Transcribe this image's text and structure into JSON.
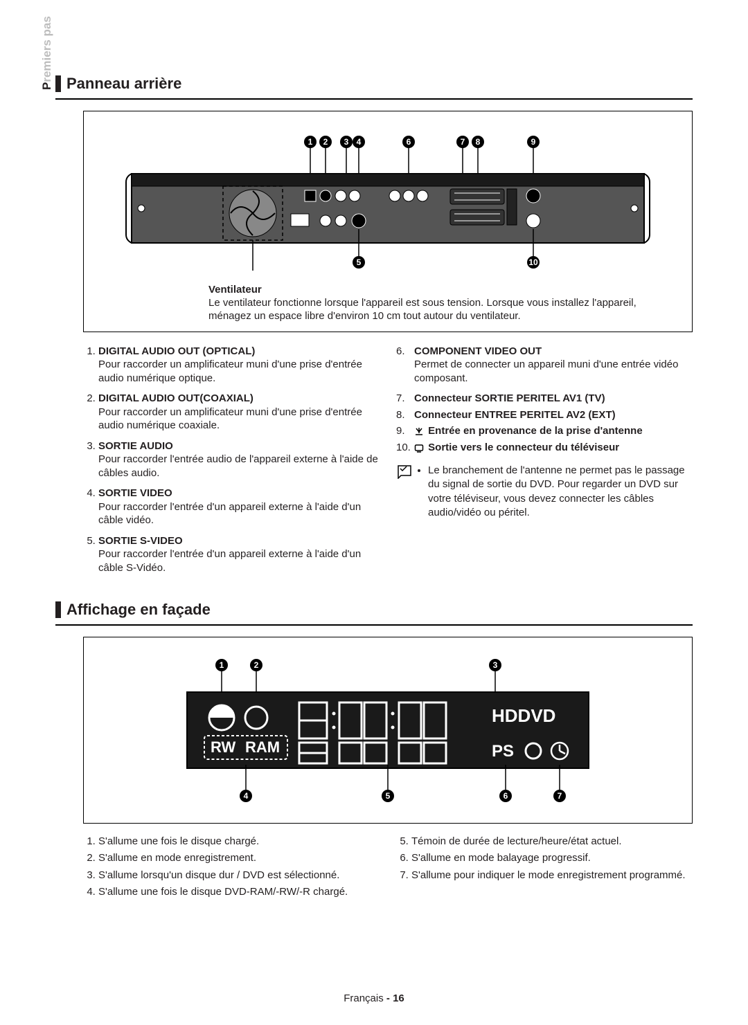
{
  "side_tab_highlight": "P",
  "side_tab_rest": "remiers pas",
  "section1_title": "Panneau arrière",
  "ventilator": {
    "label": "Ventilateur",
    "text": "Le ventilateur fonctionne lorsque l'appareil est sous tension. Lorsque vous installez l'appareil, ménagez un espace libre d'environ 10 cm tout autour du ventilateur."
  },
  "rear_left": [
    {
      "t": "DIGITAL AUDIO OUT (OPTICAL)",
      "d": "Pour raccorder un amplificateur muni d'une prise d'entrée audio numérique optique."
    },
    {
      "t": "DIGITAL AUDIO OUT(COAXIAL)",
      "d": "Pour raccorder un amplificateur muni d'une prise d'entrée audio numérique coaxiale."
    },
    {
      "t": "SORTIE AUDIO",
      "d": "Pour raccorder l'entrée audio de l'appareil externe à l'aide de câbles audio."
    },
    {
      "t": "SORTIE VIDEO",
      "d": "Pour raccorder l'entrée d'un appareil externe à l'aide d'un câble vidéo."
    },
    {
      "t": "SORTIE S-VIDEO",
      "d": "Pour raccorder l'entrée d'un appareil externe à l'aide d'un câble S-Vidéo."
    }
  ],
  "rear_right": [
    {
      "n": "6.",
      "t": "COMPONENT VIDEO OUT",
      "d": "Permet de connecter un appareil muni d'une entrée vidéo composant."
    },
    {
      "n": "7.",
      "t": "Connecteur SORTIE PERITEL AV1 (TV)",
      "d": ""
    },
    {
      "n": "8.",
      "t": "Connecteur ENTREE PERITEL AV2 (EXT)",
      "d": ""
    },
    {
      "n": "9.",
      "t": "Entrée en provenance de la prise d'antenne",
      "d": "",
      "ic": "ant-in"
    },
    {
      "n": "10.",
      "t": "Sortie vers le connecteur du téléviseur",
      "d": "",
      "ic": "ant-out"
    }
  ],
  "note": "Le branchement de l'antenne ne permet pas le passage du signal de sortie du DVD. Pour regarder un DVD sur votre téléviseur, vous devez connecter les câbles audio/vidéo ou péritel.",
  "section2_title": "Afﬁchage en façade",
  "front_left": [
    "S'allume une fois le disque chargé.",
    "S'allume en mode enregistrement.",
    "S'allume lorsqu'un disque dur / DVD est sélectionné.",
    "S'allume une fois le disque DVD-RAM/-RW/-R chargé."
  ],
  "front_right": [
    "Témoin de durée de lecture/heure/état actuel.",
    "S'allume en mode balayage progressif.",
    "S'allume pour indiquer le mode enregistrement programmé."
  ],
  "footer_lang": "Français",
  "footer_page": "- 16",
  "colors": {
    "ink": "#231f20",
    "grey": "#bdbdbd",
    "black": "#000000",
    "panel_dark": "#1a1a1a",
    "panel_grey": "#555555",
    "white": "#ffffff"
  },
  "rear_callouts_top": [
    "1",
    "2",
    "3",
    "4",
    "6",
    "7",
    "8",
    "9"
  ],
  "rear_callouts_bottom": [
    "5",
    "10"
  ],
  "front_callouts_top": [
    "1",
    "2",
    "3"
  ],
  "front_callouts_bottom": [
    "4",
    "5",
    "6",
    "7"
  ],
  "front_display": {
    "hd": "HDDVD",
    "rw": "RW",
    "ram": "RAM",
    "ps": "PS"
  }
}
